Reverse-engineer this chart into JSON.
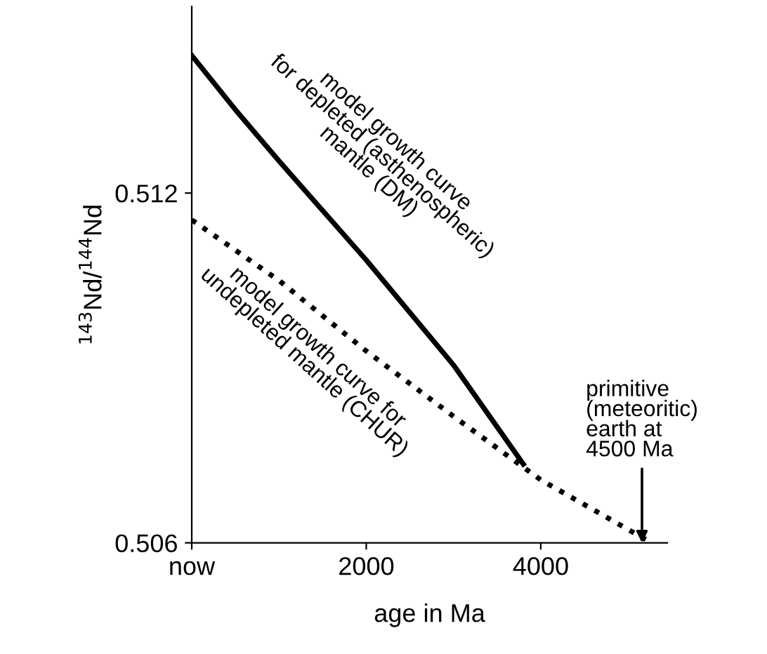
{
  "chart_data": {
    "type": "line",
    "xlabel": "age in Ma",
    "ylabel": "$^{143}$Nd/$^{144}$Nd",
    "xlim": [
      0,
      5450
    ],
    "ylim": [
      0.506,
      0.5152
    ],
    "xticks": [
      {
        "value": 0,
        "label": "now"
      },
      2000,
      4000
    ],
    "yticks": [
      0.506,
      0.512
    ],
    "grid": false,
    "legend": false,
    "marker": "none",
    "series": [
      {
        "color": "#000000",
        "line_style": "solid",
        "x": [
          0,
          500,
          1000,
          2000,
          3000,
          3800
        ],
        "values": [
          0.51436,
          0.51343,
          0.51255,
          0.51085,
          0.50905,
          0.50735
        ]
      },
      {
        "color": "#000000",
        "line_style": "dotted",
        "x": [
          0,
          1000,
          2000,
          3000,
          4000,
          5270
        ],
        "values": [
          0.51154,
          0.5105,
          0.50929,
          0.50817,
          0.50708,
          0.506
        ]
      }
    ],
    "annotations": [
      "model growth curve\nfor depleted (asthenospheric)\nmantle (DM)",
      "model growth curve for\nundepleted mantle (CHUR)",
      {
        "text": "primitive\n(meteoritic)\nearth at\n4500 Ma",
        "x": 5160,
        "y": 0.506
      }
    ]
  }
}
